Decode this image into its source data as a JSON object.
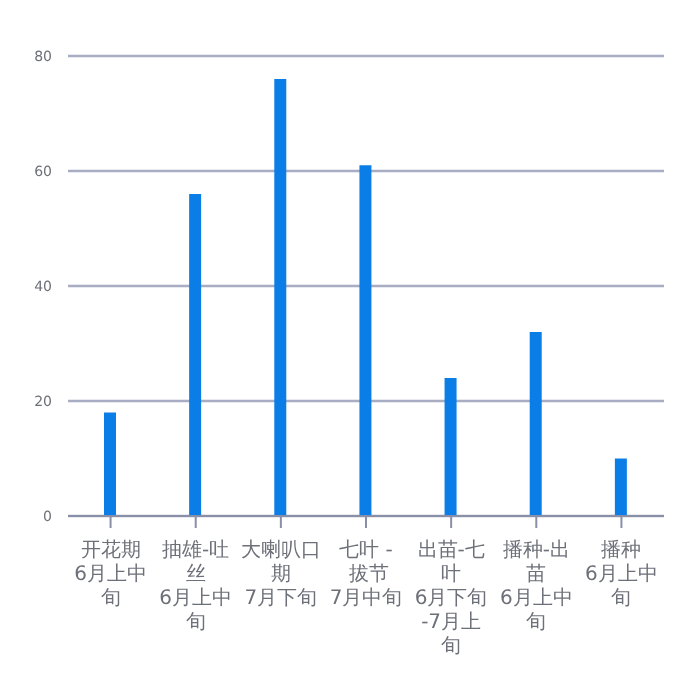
{
  "chart_data": {
    "type": "bar",
    "categories": [
      "开花期\n6月上中旬",
      "抽雄-吐丝\n6月上中旬",
      "大喇叭口期\n7月下旬",
      "七叶 - 拔节\n7月中旬",
      "出苗-七叶\n6月下旬-7月上旬",
      "播种-出苗\n6月上中旬",
      "播种\n6月上中旬"
    ],
    "values": [
      18,
      56,
      76,
      61,
      24,
      32,
      10
    ],
    "color": "#0a7ee6",
    "ylim": [
      0,
      80
    ],
    "yticks": [
      0,
      20,
      40,
      60,
      80
    ],
    "grid": "y"
  }
}
